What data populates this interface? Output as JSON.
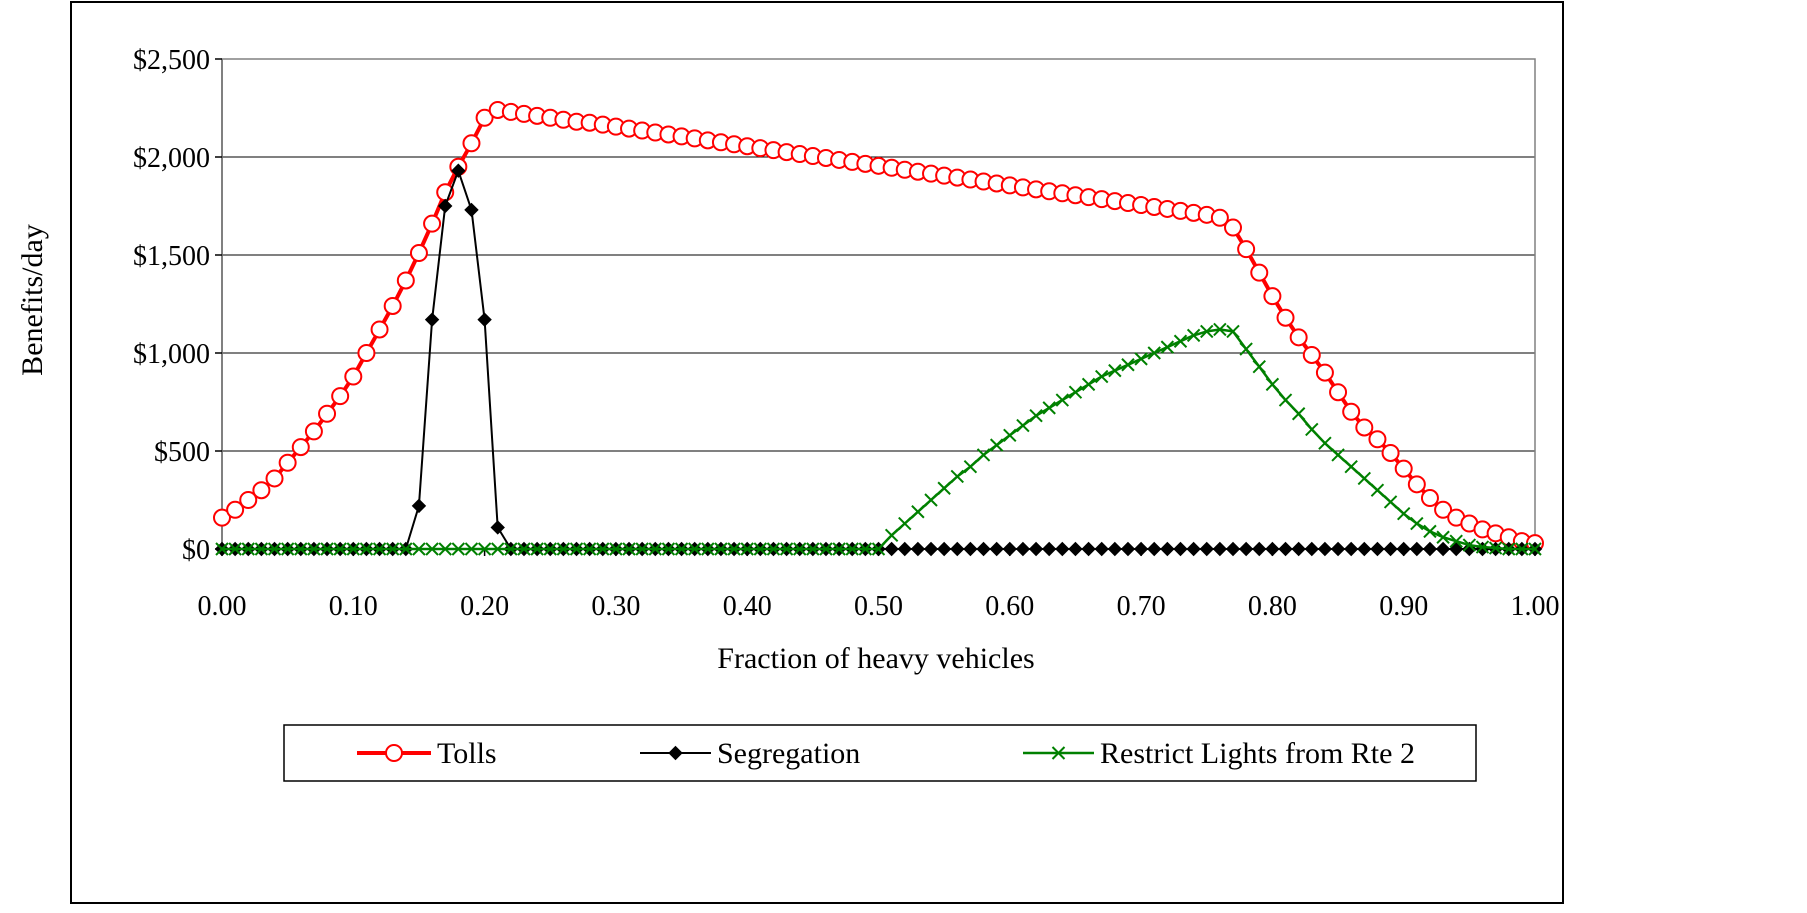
{
  "chart_data": {
    "type": "line",
    "xlabel": "Fraction of heavy vehicles",
    "ylabel": "Benefits/day",
    "xlim": [
      0,
      1
    ],
    "ylim": [
      0,
      2500
    ],
    "x_ticks": [
      "0.00",
      "0.10",
      "0.20",
      "0.30",
      "0.40",
      "0.50",
      "0.60",
      "0.70",
      "0.80",
      "0.90",
      "1.00"
    ],
    "y_ticks": [
      "$0",
      "$500",
      "$1,000",
      "$1,500",
      "$2,000",
      "$2,500"
    ],
    "grid": "horizontal",
    "legend_position": "bottom",
    "series": [
      {
        "name": "Tolls",
        "color": "#ff0000",
        "marker": "open-circle",
        "x": [
          0.0,
          0.01,
          0.02,
          0.03,
          0.04,
          0.05,
          0.06,
          0.07,
          0.08,
          0.09,
          0.1,
          0.11,
          0.12,
          0.13,
          0.14,
          0.15,
          0.16,
          0.17,
          0.18,
          0.19,
          0.2,
          0.21,
          0.22,
          0.23,
          0.24,
          0.25,
          0.26,
          0.27,
          0.28,
          0.29,
          0.3,
          0.31,
          0.32,
          0.33,
          0.34,
          0.35,
          0.36,
          0.37,
          0.38,
          0.39,
          0.4,
          0.41,
          0.42,
          0.43,
          0.44,
          0.45,
          0.46,
          0.47,
          0.48,
          0.49,
          0.5,
          0.51,
          0.52,
          0.53,
          0.54,
          0.55,
          0.56,
          0.57,
          0.58,
          0.59,
          0.6,
          0.61,
          0.62,
          0.63,
          0.64,
          0.65,
          0.66,
          0.67,
          0.68,
          0.69,
          0.7,
          0.71,
          0.72,
          0.73,
          0.74,
          0.75,
          0.76,
          0.77,
          0.78,
          0.79,
          0.8,
          0.81,
          0.82,
          0.83,
          0.84,
          0.85,
          0.86,
          0.87,
          0.88,
          0.89,
          0.9,
          0.91,
          0.92,
          0.93,
          0.94,
          0.95,
          0.96,
          0.97,
          0.98,
          0.99,
          1.0
        ],
        "values": [
          160,
          200,
          250,
          300,
          360,
          440,
          520,
          600,
          690,
          780,
          880,
          1000,
          1120,
          1240,
          1370,
          1510,
          1660,
          1820,
          1950,
          2070,
          2200,
          2240,
          2230,
          2220,
          2210,
          2200,
          2190,
          2180,
          2175,
          2165,
          2155,
          2145,
          2135,
          2125,
          2115,
          2105,
          2095,
          2085,
          2075,
          2065,
          2055,
          2045,
          2035,
          2025,
          2015,
          2005,
          1995,
          1985,
          1975,
          1965,
          1955,
          1945,
          1935,
          1925,
          1915,
          1905,
          1895,
          1885,
          1875,
          1865,
          1855,
          1845,
          1835,
          1825,
          1815,
          1805,
          1795,
          1785,
          1775,
          1765,
          1755,
          1745,
          1735,
          1725,
          1715,
          1705,
          1690,
          1640,
          1530,
          1410,
          1290,
          1180,
          1080,
          990,
          900,
          800,
          700,
          620,
          560,
          490,
          410,
          330,
          260,
          200,
          160,
          130,
          100,
          80,
          60,
          40,
          30
        ]
      },
      {
        "name": "Segregation",
        "color": "#000000",
        "marker": "filled-diamond",
        "x": [
          0.0,
          0.01,
          0.02,
          0.03,
          0.04,
          0.05,
          0.06,
          0.07,
          0.08,
          0.09,
          0.1,
          0.11,
          0.12,
          0.13,
          0.14,
          0.15,
          0.16,
          0.17,
          0.18,
          0.19,
          0.2,
          0.21,
          0.22,
          0.23,
          0.24,
          0.25,
          0.26,
          0.27,
          0.28,
          0.29,
          0.3,
          0.31,
          0.32,
          0.33,
          0.34,
          0.35,
          0.36,
          0.37,
          0.38,
          0.39,
          0.4,
          0.41,
          0.42,
          0.43,
          0.44,
          0.45,
          0.46,
          0.47,
          0.48,
          0.49,
          0.5,
          0.51,
          0.52,
          0.53,
          0.54,
          0.55,
          0.56,
          0.57,
          0.58,
          0.59,
          0.6,
          0.61,
          0.62,
          0.63,
          0.64,
          0.65,
          0.66,
          0.67,
          0.68,
          0.69,
          0.7,
          0.71,
          0.72,
          0.73,
          0.74,
          0.75,
          0.76,
          0.77,
          0.78,
          0.79,
          0.8,
          0.81,
          0.82,
          0.83,
          0.84,
          0.85,
          0.86,
          0.87,
          0.88,
          0.89,
          0.9,
          0.91,
          0.92,
          0.93,
          0.94,
          0.95,
          0.96,
          0.97,
          0.98,
          0.99,
          1.0
        ],
        "values": [
          0,
          0,
          0,
          0,
          0,
          0,
          0,
          0,
          0,
          0,
          0,
          0,
          0,
          0,
          0,
          220,
          1170,
          1750,
          1930,
          1730,
          1170,
          110,
          0,
          0,
          0,
          0,
          0,
          0,
          0,
          0,
          0,
          0,
          0,
          0,
          0,
          0,
          0,
          0,
          0,
          0,
          0,
          0,
          0,
          0,
          0,
          0,
          0,
          0,
          0,
          0,
          0,
          0,
          0,
          0,
          0,
          0,
          0,
          0,
          0,
          0,
          0,
          0,
          0,
          0,
          0,
          0,
          0,
          0,
          0,
          0,
          0,
          0,
          0,
          0,
          0,
          0,
          0,
          0,
          0,
          0,
          0,
          0,
          0,
          0,
          0,
          0,
          0,
          0,
          0,
          0,
          0,
          0,
          0,
          0,
          0,
          0,
          0,
          0,
          0,
          0,
          0
        ]
      },
      {
        "name": "Restrict Lights from Rte 2",
        "color": "#008000",
        "marker": "x",
        "x": [
          0.0,
          0.01,
          0.02,
          0.03,
          0.04,
          0.05,
          0.06,
          0.07,
          0.08,
          0.09,
          0.1,
          0.11,
          0.12,
          0.13,
          0.14,
          0.15,
          0.16,
          0.17,
          0.18,
          0.19,
          0.2,
          0.21,
          0.22,
          0.23,
          0.24,
          0.25,
          0.26,
          0.27,
          0.28,
          0.29,
          0.3,
          0.31,
          0.32,
          0.33,
          0.34,
          0.35,
          0.36,
          0.37,
          0.38,
          0.39,
          0.4,
          0.41,
          0.42,
          0.43,
          0.44,
          0.45,
          0.46,
          0.47,
          0.48,
          0.49,
          0.5,
          0.51,
          0.52,
          0.53,
          0.54,
          0.55,
          0.56,
          0.57,
          0.58,
          0.59,
          0.6,
          0.61,
          0.62,
          0.63,
          0.64,
          0.65,
          0.66,
          0.67,
          0.68,
          0.69,
          0.7,
          0.71,
          0.72,
          0.73,
          0.74,
          0.75,
          0.76,
          0.77,
          0.78,
          0.79,
          0.8,
          0.81,
          0.82,
          0.83,
          0.84,
          0.85,
          0.86,
          0.87,
          0.88,
          0.89,
          0.9,
          0.91,
          0.92,
          0.93,
          0.94,
          0.95,
          0.96,
          0.97,
          0.98,
          0.99,
          1.0
        ],
        "values": [
          0,
          0,
          0,
          0,
          0,
          0,
          0,
          0,
          0,
          0,
          0,
          0,
          0,
          0,
          0,
          0,
          0,
          0,
          0,
          0,
          0,
          0,
          0,
          0,
          0,
          0,
          0,
          0,
          0,
          0,
          0,
          0,
          0,
          0,
          0,
          0,
          0,
          0,
          0,
          0,
          0,
          0,
          0,
          0,
          0,
          0,
          0,
          0,
          0,
          0,
          0,
          70,
          130,
          190,
          250,
          310,
          370,
          420,
          480,
          530,
          580,
          630,
          680,
          720,
          760,
          800,
          840,
          880,
          910,
          940,
          970,
          1000,
          1030,
          1060,
          1090,
          1110,
          1120,
          1110,
          1020,
          930,
          840,
          760,
          690,
          610,
          540,
          480,
          420,
          360,
          300,
          240,
          180,
          130,
          90,
          60,
          40,
          20,
          10,
          5,
          0,
          0,
          0
        ]
      }
    ]
  }
}
